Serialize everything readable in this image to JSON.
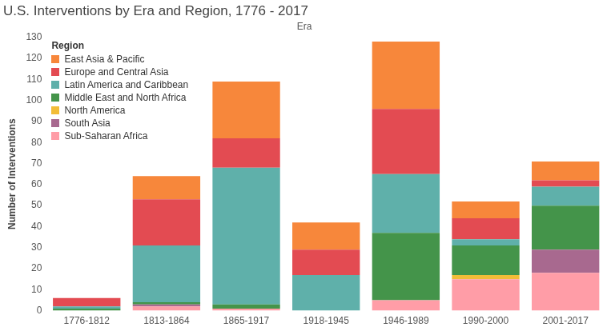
{
  "chart_data": {
    "type": "bar",
    "title": "U.S. Interventions by Era and Region, 1776 - 2017",
    "x_label": "Era",
    "y_label": "Number of Interventions",
    "categories": [
      "1776-1812",
      "1813-1864",
      "1865-1917",
      "1918-1945",
      "1946-1989",
      "1990-2000",
      "2001-2017"
    ],
    "series": [
      {
        "name": "East Asia & Pacific",
        "color": "#f7873b",
        "values": [
          0,
          11,
          27,
          13,
          32,
          8,
          9
        ]
      },
      {
        "name": "Europe and Central Asia",
        "color": "#e34b52",
        "values": [
          4,
          22,
          14,
          12,
          31,
          10,
          3
        ]
      },
      {
        "name": "Latin America and Caribbean",
        "color": "#5fb0aa",
        "values": [
          1,
          27,
          65,
          17,
          28,
          3,
          9
        ]
      },
      {
        "name": "Middle East and North Africa",
        "color": "#44944a",
        "values": [
          1,
          1,
          2,
          0,
          32,
          14,
          21
        ]
      },
      {
        "name": "North America",
        "color": "#f2bd38",
        "values": [
          0,
          0,
          0,
          0,
          0,
          2,
          0
        ]
      },
      {
        "name": "South Asia",
        "color": "#a8698f",
        "values": [
          0,
          1,
          0,
          0,
          0,
          0,
          11
        ]
      },
      {
        "name": "Sub-Saharan Africa",
        "color": "#ff9da7",
        "values": [
          0,
          2,
          1,
          0,
          5,
          15,
          18
        ]
      }
    ],
    "legend_title": "Region",
    "legend": "top-left",
    "stacked": true,
    "grid": false,
    "ylim": [
      0,
      130
    ],
    "yticks": [
      0,
      10,
      20,
      30,
      40,
      50,
      60,
      70,
      80,
      90,
      100,
      110,
      120,
      130
    ]
  }
}
